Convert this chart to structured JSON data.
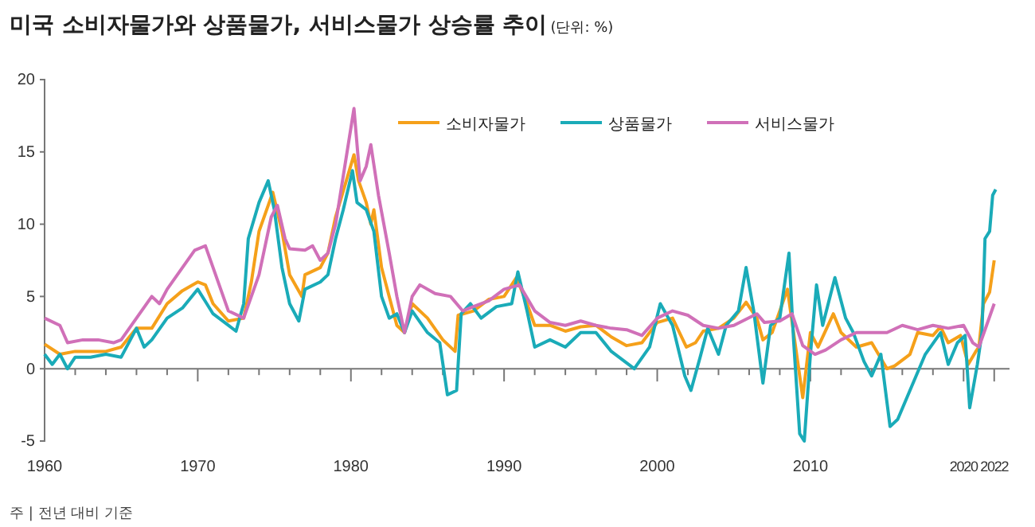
{
  "chart_data": {
    "type": "line",
    "title": "미국 소비자물가와 상품물가, 서비스물가 상승률 추이",
    "subtitle": "(단위: %)",
    "annotations": [
      "주 | 전년 대비 기준"
    ],
    "xlim": [
      1960,
      2023
    ],
    "ylim": [
      -5,
      20
    ],
    "yticks": [
      -5,
      0,
      5,
      10,
      15,
      20
    ],
    "xticks": [
      1960,
      {
        "value": 1962,
        "label": null
      },
      {
        "value": 1964,
        "label": null
      },
      {
        "value": 1966,
        "label": null
      },
      {
        "value": 1968,
        "label": null
      },
      1970,
      {
        "value": 1972,
        "label": null
      },
      {
        "value": 1974,
        "label": null
      },
      {
        "value": 1976,
        "label": null
      },
      {
        "value": 1978,
        "label": null
      },
      1980,
      {
        "value": 1982,
        "label": null
      },
      {
        "value": 1984,
        "label": null
      },
      {
        "value": 1986,
        "label": null
      },
      {
        "value": 1988,
        "label": null
      },
      1990,
      {
        "value": 1992,
        "label": null
      },
      {
        "value": 1994,
        "label": null
      },
      {
        "value": 1996,
        "label": null
      },
      {
        "value": 1998,
        "label": null
      },
      2000,
      {
        "value": 2002,
        "label": null
      },
      {
        "value": 2004,
        "label": null
      },
      {
        "value": 2006,
        "label": null
      },
      {
        "value": 2008,
        "label": null
      },
      2010,
      {
        "value": 2012,
        "label": null
      },
      {
        "value": 2014,
        "label": null
      },
      {
        "value": 2016,
        "label": null
      },
      {
        "value": 2018,
        "label": null
      },
      2020,
      2022
    ],
    "legend": "top right",
    "line_style": "solid",
    "marker": "none",
    "series": [
      {
        "name": "소비자물가",
        "color": "#f5a01a",
        "x": [
          1960,
          1961,
          1962,
          1963,
          1964,
          1965,
          1966,
          1967,
          1968,
          1969,
          1970,
          1970.5,
          1971,
          1972,
          1973,
          1973.5,
          1974,
          1974.9,
          1975.5,
          1976,
          1976.8,
          1977,
          1978,
          1978.5,
          1979,
          1980.2,
          1980.5,
          1981,
          1981.3,
          1981.5,
          1982,
          1982.5,
          1983,
          1983.5,
          1984,
          1985,
          1986,
          1986.8,
          1987,
          1988,
          1989,
          1990,
          1990.8,
          1991.5,
          1992,
          1993,
          1994,
          1995,
          1996,
          1997,
          1998,
          1999,
          2000,
          2001,
          2001.9,
          2002.5,
          2003,
          2004,
          2005,
          2005.8,
          2006.5,
          2006.9,
          2007.5,
          2008.5,
          2009.5,
          2010,
          2010.5,
          2011.5,
          2012,
          2013,
          2014,
          2015,
          2015.5,
          2016.5,
          2017,
          2018,
          2018.5,
          2019,
          2019.8,
          2020.3,
          2020.8,
          2021,
          2021.3,
          2021.7,
          2022
        ],
        "values": [
          1.7,
          1.0,
          1.2,
          1.2,
          1.2,
          1.5,
          2.8,
          2.8,
          4.5,
          5.4,
          6.0,
          5.8,
          4.5,
          3.3,
          3.5,
          6,
          9.5,
          12.2,
          9.5,
          6.5,
          5.0,
          6.5,
          7.0,
          8,
          10.5,
          14.8,
          13,
          11.5,
          10,
          11,
          7,
          5,
          3.0,
          2.5,
          4.5,
          3.5,
          2.0,
          1.2,
          3.7,
          4.0,
          4.8,
          5.0,
          6.3,
          4.5,
          3.0,
          3.0,
          2.6,
          2.9,
          3.0,
          2.2,
          1.6,
          1.8,
          3.2,
          3.5,
          1.5,
          1.8,
          2.6,
          2.8,
          3.5,
          4.6,
          3.5,
          2.0,
          2.5,
          5.5,
          -2.0,
          2.5,
          1.5,
          3.8,
          2.5,
          1.5,
          1.8,
          0,
          0.2,
          1.0,
          2.5,
          2.3,
          2.9,
          1.8,
          2.3,
          0.3,
          1.2,
          1.5,
          4.5,
          5.3,
          7.5
        ]
      },
      {
        "name": "상품물가",
        "color": "#1aabb8",
        "x": [
          1960,
          1960.5,
          1961,
          1961.5,
          1962,
          1963,
          1964,
          1965,
          1966,
          1966.5,
          1967,
          1968,
          1969,
          1970,
          1971,
          1972,
          1972.5,
          1973,
          1973.3,
          1974,
          1974.6,
          1975,
          1975.5,
          1976,
          1976.6,
          1977,
          1978,
          1978.5,
          1979,
          1979.5,
          1980.1,
          1980.4,
          1981,
          1981.5,
          1982,
          1982.5,
          1983,
          1983.5,
          1984,
          1985,
          1985.8,
          1986.3,
          1986.9,
          1987.2,
          1987.8,
          1988.5,
          1989.5,
          1990.5,
          1990.9,
          1991.5,
          1992,
          1993,
          1994,
          1995,
          1996,
          1997,
          1998.5,
          1999.5,
          2000.2,
          2001,
          2001.8,
          2002.2,
          2002.8,
          2003.3,
          2004,
          2004.5,
          2005.3,
          2005.8,
          2006.3,
          2006.9,
          2007.4,
          2008,
          2008.6,
          2008.9,
          2009.3,
          2009.6,
          2010,
          2010.4,
          2010.8,
          2011.6,
          2012.3,
          2012.8,
          2013.5,
          2014,
          2014.6,
          2015.2,
          2015.7,
          2016.3,
          2016.9,
          2017.5,
          2018.5,
          2019,
          2019.6,
          2020.1,
          2020.4,
          2020.9,
          2021.2,
          2021.4,
          2021.7,
          2021.9,
          2022.1
        ],
        "values": [
          1.0,
          0.3,
          1.0,
          0,
          0.8,
          0.8,
          1.0,
          0.8,
          2.8,
          1.5,
          2.0,
          3.5,
          4.2,
          5.5,
          3.8,
          3.0,
          2.6,
          4.5,
          9,
          11.5,
          13.0,
          11,
          7,
          4.5,
          3.3,
          5.5,
          6.0,
          6.5,
          9,
          11,
          13.7,
          11.5,
          11,
          9.5,
          5,
          3.5,
          3.8,
          2.5,
          4,
          2.5,
          1.8,
          -1.8,
          -1.5,
          3.8,
          4.5,
          3.5,
          4.3,
          4.5,
          6.7,
          4,
          1.5,
          2.0,
          1.5,
          2.5,
          2.5,
          1.2,
          0,
          1.5,
          4.5,
          3.0,
          -0.5,
          -1.5,
          0.8,
          2.8,
          1.0,
          3,
          4,
          7,
          4,
          -1.0,
          3.0,
          3.5,
          8.0,
          2,
          -4.5,
          -5.0,
          1,
          5.8,
          3,
          6.3,
          3.5,
          2.5,
          0.5,
          -0.5,
          1.0,
          -4.0,
          -3.5,
          -2.0,
          -0.5,
          1.0,
          2.5,
          0.3,
          1.8,
          2.3,
          -2.7,
          0.3,
          2.5,
          9.0,
          9.5,
          12.0,
          12.4
        ]
      },
      {
        "name": "서비스물가",
        "color": "#d070b8",
        "x": [
          1960,
          1961,
          1961.5,
          1962.5,
          1963.5,
          1964.5,
          1965,
          1966,
          1967,
          1967.5,
          1968,
          1969,
          1969.8,
          1970.5,
          1971,
          1971.5,
          1972,
          1973,
          1974,
          1974.8,
          1975.2,
          1975.7,
          1976,
          1977,
          1977.5,
          1978,
          1978.5,
          1979,
          1980.2,
          1980.6,
          1981,
          1981.3,
          1981.8,
          1982.5,
          1983,
          1983.5,
          1984,
          1984.5,
          1985.5,
          1986.5,
          1987.3,
          1988,
          1989,
          1990,
          1991,
          1992,
          1993,
          1994,
          1995,
          1996,
          1997,
          1998,
          1999,
          2000,
          2001,
          2002,
          2003,
          2004,
          2005,
          2006.5,
          2007,
          2008,
          2008.8,
          2009.5,
          2010.3,
          2011,
          2012,
          2013,
          2014,
          2015,
          2016,
          2017,
          2018,
          2019,
          2020,
          2020.6,
          2021,
          2021.5,
          2022
        ],
        "values": [
          3.5,
          3.0,
          1.8,
          2.0,
          2.0,
          1.8,
          2.0,
          3.5,
          5.0,
          4.5,
          5.5,
          7.0,
          8.2,
          8.5,
          7.0,
          5.5,
          4.0,
          3.5,
          6.5,
          10.5,
          11.3,
          9,
          8.3,
          8.2,
          8.5,
          7.5,
          8.0,
          10,
          18.0,
          13,
          14,
          15.5,
          12,
          8,
          5,
          2.5,
          5.0,
          5.8,
          5.2,
          5.0,
          4.0,
          4.3,
          4.7,
          5.5,
          5.8,
          4.0,
          3.2,
          3.0,
          3.3,
          3.0,
          2.8,
          2.7,
          2.3,
          3.5,
          4.0,
          3.7,
          3.0,
          2.8,
          3.0,
          3.8,
          3.2,
          3.3,
          3.8,
          1.6,
          1.0,
          1.3,
          2.0,
          2.5,
          2.5,
          2.5,
          3.0,
          2.7,
          3.0,
          2.8,
          3.0,
          1.8,
          1.5,
          3.0,
          4.5
        ]
      }
    ]
  }
}
